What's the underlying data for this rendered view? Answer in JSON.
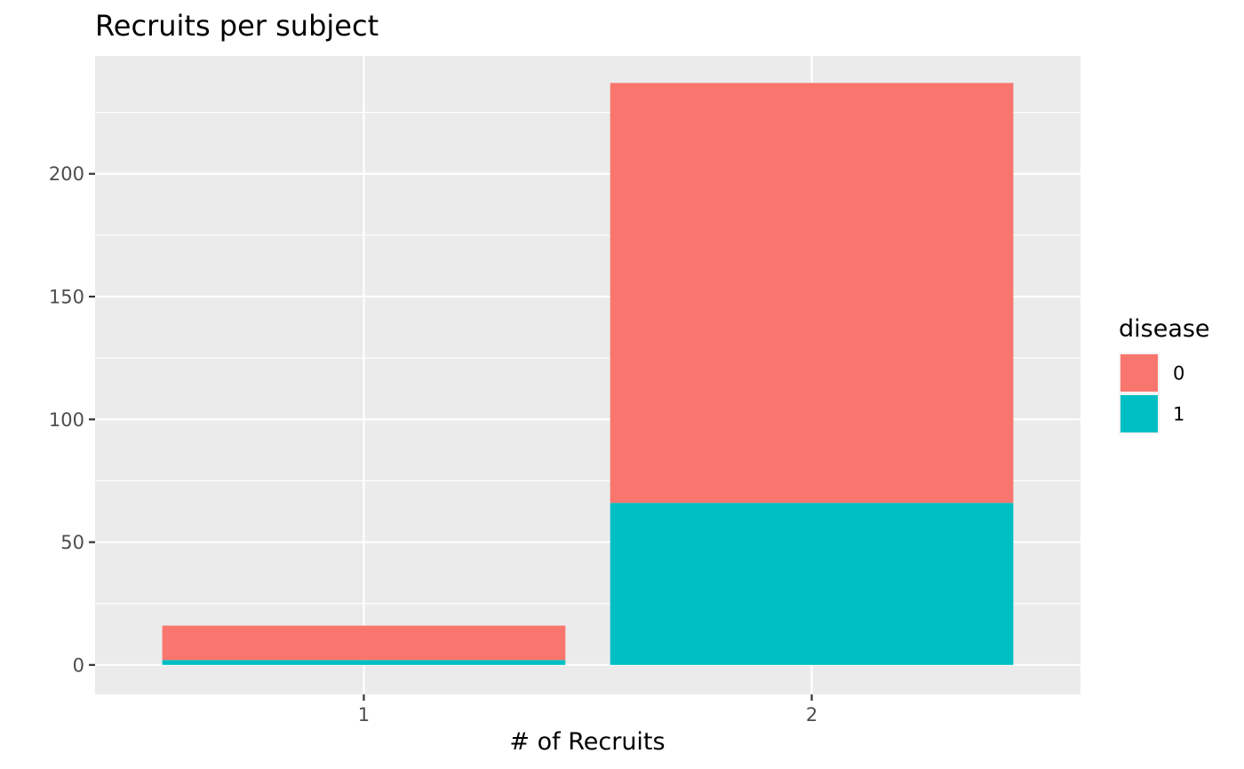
{
  "chart_data": {
    "type": "bar",
    "stacked": true,
    "title": "Recruits per subject",
    "xlabel": "# of Recruits",
    "ylabel": "",
    "categories": [
      "1",
      "2"
    ],
    "series": [
      {
        "name": "0",
        "values": [
          14,
          171
        ],
        "color": "#F8766D"
      },
      {
        "name": "1",
        "values": [
          2,
          66
        ],
        "color": "#00BFC4"
      }
    ],
    "ylim": [
      -12,
      248
    ],
    "yticks": [
      0,
      50,
      100,
      150,
      200
    ],
    "grid": true,
    "legend": {
      "title": "disease",
      "position": "right"
    },
    "colors": {
      "panel_background": "#EBEBEB",
      "grid": "#FFFFFF",
      "tick": "#333333"
    }
  }
}
